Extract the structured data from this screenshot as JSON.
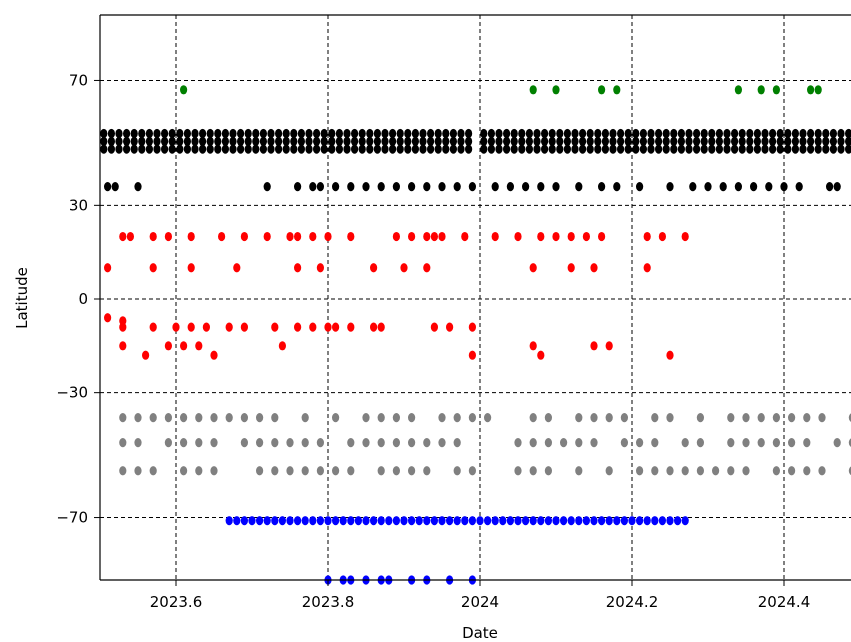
{
  "chart_data": {
    "type": "scatter",
    "title": "",
    "xlabel": "Date",
    "ylabel": "Latitude",
    "xlim": [
      2023.5,
      2024.5
    ],
    "ylim": [
      -90,
      90
    ],
    "x_ticks": [
      2023.6,
      2023.8,
      2024.0,
      2024.2,
      2024.4
    ],
    "x_tick_labels": [
      "2023.6",
      "2023.8",
      "2024",
      "2024.2",
      "2024.4"
    ],
    "y_ticks": [
      70,
      30,
      0,
      -30,
      -70
    ],
    "y_tick_labels": [
      "70",
      "30",
      "0",
      "−30",
      "−70"
    ],
    "grid": true,
    "grid_style": "dashed",
    "legend": "none",
    "series": [
      {
        "color": "#008000",
        "points": [
          [
            2023.61,
            67
          ],
          [
            2024.07,
            67
          ],
          [
            2024.1,
            67
          ],
          [
            2024.16,
            67
          ],
          [
            2024.18,
            67
          ],
          [
            2024.34,
            67
          ],
          [
            2024.37,
            67
          ],
          [
            2024.39,
            67
          ],
          [
            2024.435,
            67
          ],
          [
            2024.445,
            67
          ]
        ]
      },
      {
        "color": "#000000",
        "x_range": [
          2023.505,
          2024.5
        ],
        "x_step": 0.01,
        "rows": [
          48,
          50.5,
          53
        ],
        "gaps": [
          [
            2023.985,
            2024.0
          ]
        ]
      },
      {
        "color": "#000000",
        "points": [
          [
            2023.51,
            36
          ],
          [
            2023.52,
            36
          ],
          [
            2023.55,
            36
          ],
          [
            2023.72,
            36
          ],
          [
            2023.76,
            36
          ],
          [
            2023.78,
            36
          ],
          [
            2023.79,
            36
          ],
          [
            2023.81,
            36
          ],
          [
            2023.83,
            36
          ],
          [
            2023.85,
            36
          ],
          [
            2023.87,
            36
          ],
          [
            2023.89,
            36
          ],
          [
            2023.91,
            36
          ],
          [
            2023.93,
            36
          ],
          [
            2023.95,
            36
          ],
          [
            2023.97,
            36
          ],
          [
            2023.99,
            36
          ],
          [
            2024.02,
            36
          ],
          [
            2024.04,
            36
          ],
          [
            2024.06,
            36
          ],
          [
            2024.08,
            36
          ],
          [
            2024.1,
            36
          ],
          [
            2024.13,
            36
          ],
          [
            2024.16,
            36
          ],
          [
            2024.18,
            36
          ],
          [
            2024.21,
            36
          ],
          [
            2024.25,
            36
          ],
          [
            2024.28,
            36
          ],
          [
            2024.3,
            36
          ],
          [
            2024.32,
            36
          ],
          [
            2024.34,
            36
          ],
          [
            2024.36,
            36
          ],
          [
            2024.38,
            36
          ],
          [
            2024.4,
            36
          ],
          [
            2024.42,
            36
          ],
          [
            2024.46,
            36
          ],
          [
            2024.47,
            36
          ]
        ]
      },
      {
        "color": "#ff0000",
        "points": [
          [
            2023.51,
            10
          ],
          [
            2023.53,
            20
          ],
          [
            2023.54,
            20
          ],
          [
            2023.57,
            20
          ],
          [
            2023.59,
            20
          ],
          [
            2023.62,
            20
          ],
          [
            2023.66,
            20
          ],
          [
            2023.69,
            20
          ],
          [
            2023.72,
            20
          ],
          [
            2023.75,
            20
          ],
          [
            2023.76,
            20
          ],
          [
            2023.78,
            20
          ],
          [
            2023.8,
            20
          ],
          [
            2023.83,
            20
          ],
          [
            2023.89,
            20
          ],
          [
            2023.91,
            20
          ],
          [
            2023.93,
            20
          ],
          [
            2023.94,
            20
          ],
          [
            2023.95,
            20
          ],
          [
            2023.98,
            20
          ],
          [
            2024.02,
            20
          ],
          [
            2024.05,
            20
          ],
          [
            2024.08,
            20
          ],
          [
            2024.1,
            20
          ],
          [
            2024.12,
            20
          ],
          [
            2024.14,
            20
          ],
          [
            2024.16,
            20
          ],
          [
            2024.22,
            20
          ],
          [
            2024.24,
            20
          ],
          [
            2024.27,
            20
          ],
          [
            2023.57,
            10
          ],
          [
            2023.62,
            10
          ],
          [
            2023.68,
            10
          ],
          [
            2023.76,
            10
          ],
          [
            2023.79,
            10
          ],
          [
            2023.86,
            10
          ],
          [
            2023.9,
            10
          ],
          [
            2023.93,
            10
          ],
          [
            2024.07,
            10
          ],
          [
            2024.12,
            10
          ],
          [
            2024.15,
            10
          ],
          [
            2024.22,
            10
          ],
          [
            2023.51,
            -6
          ],
          [
            2023.53,
            -7
          ],
          [
            2023.53,
            -9
          ],
          [
            2023.57,
            -9
          ],
          [
            2023.6,
            -9
          ],
          [
            2023.62,
            -9
          ],
          [
            2023.64,
            -9
          ],
          [
            2023.67,
            -9
          ],
          [
            2023.69,
            -9
          ],
          [
            2023.73,
            -9
          ],
          [
            2023.76,
            -9
          ],
          [
            2023.78,
            -9
          ],
          [
            2023.8,
            -9
          ],
          [
            2023.81,
            -9
          ],
          [
            2023.83,
            -9
          ],
          [
            2023.86,
            -9
          ],
          [
            2023.87,
            -9
          ],
          [
            2023.94,
            -9
          ],
          [
            2023.96,
            -9
          ],
          [
            2023.99,
            -9
          ],
          [
            2023.53,
            -15
          ],
          [
            2023.59,
            -15
          ],
          [
            2023.61,
            -15
          ],
          [
            2023.63,
            -15
          ],
          [
            2023.74,
            -15
          ],
          [
            2024.07,
            -15
          ],
          [
            2024.15,
            -15
          ],
          [
            2024.17,
            -15
          ],
          [
            2023.56,
            -18
          ],
          [
            2023.65,
            -18
          ],
          [
            2023.99,
            -18
          ],
          [
            2024.08,
            -18
          ],
          [
            2024.25,
            -18
          ]
        ]
      },
      {
        "color": "#808080",
        "x_range": [
          2023.53,
          2024.5
        ],
        "x_step": 0.02,
        "rows": [
          -38,
          -46,
          -55
        ],
        "density": 0.72
      },
      {
        "color": "#0000ff",
        "x_range": [
          2023.67,
          2024.27
        ],
        "x_step": 0.01,
        "rows": [
          -71
        ]
      },
      {
        "color": "#0000ff",
        "points": [
          [
            2023.8,
            -90
          ],
          [
            2023.82,
            -90
          ],
          [
            2023.83,
            -90
          ],
          [
            2023.85,
            -90
          ],
          [
            2023.87,
            -90
          ],
          [
            2023.88,
            -90
          ],
          [
            2023.91,
            -90
          ],
          [
            2023.93,
            -90
          ],
          [
            2023.96,
            -90
          ],
          [
            2023.99,
            -90
          ]
        ]
      }
    ]
  }
}
